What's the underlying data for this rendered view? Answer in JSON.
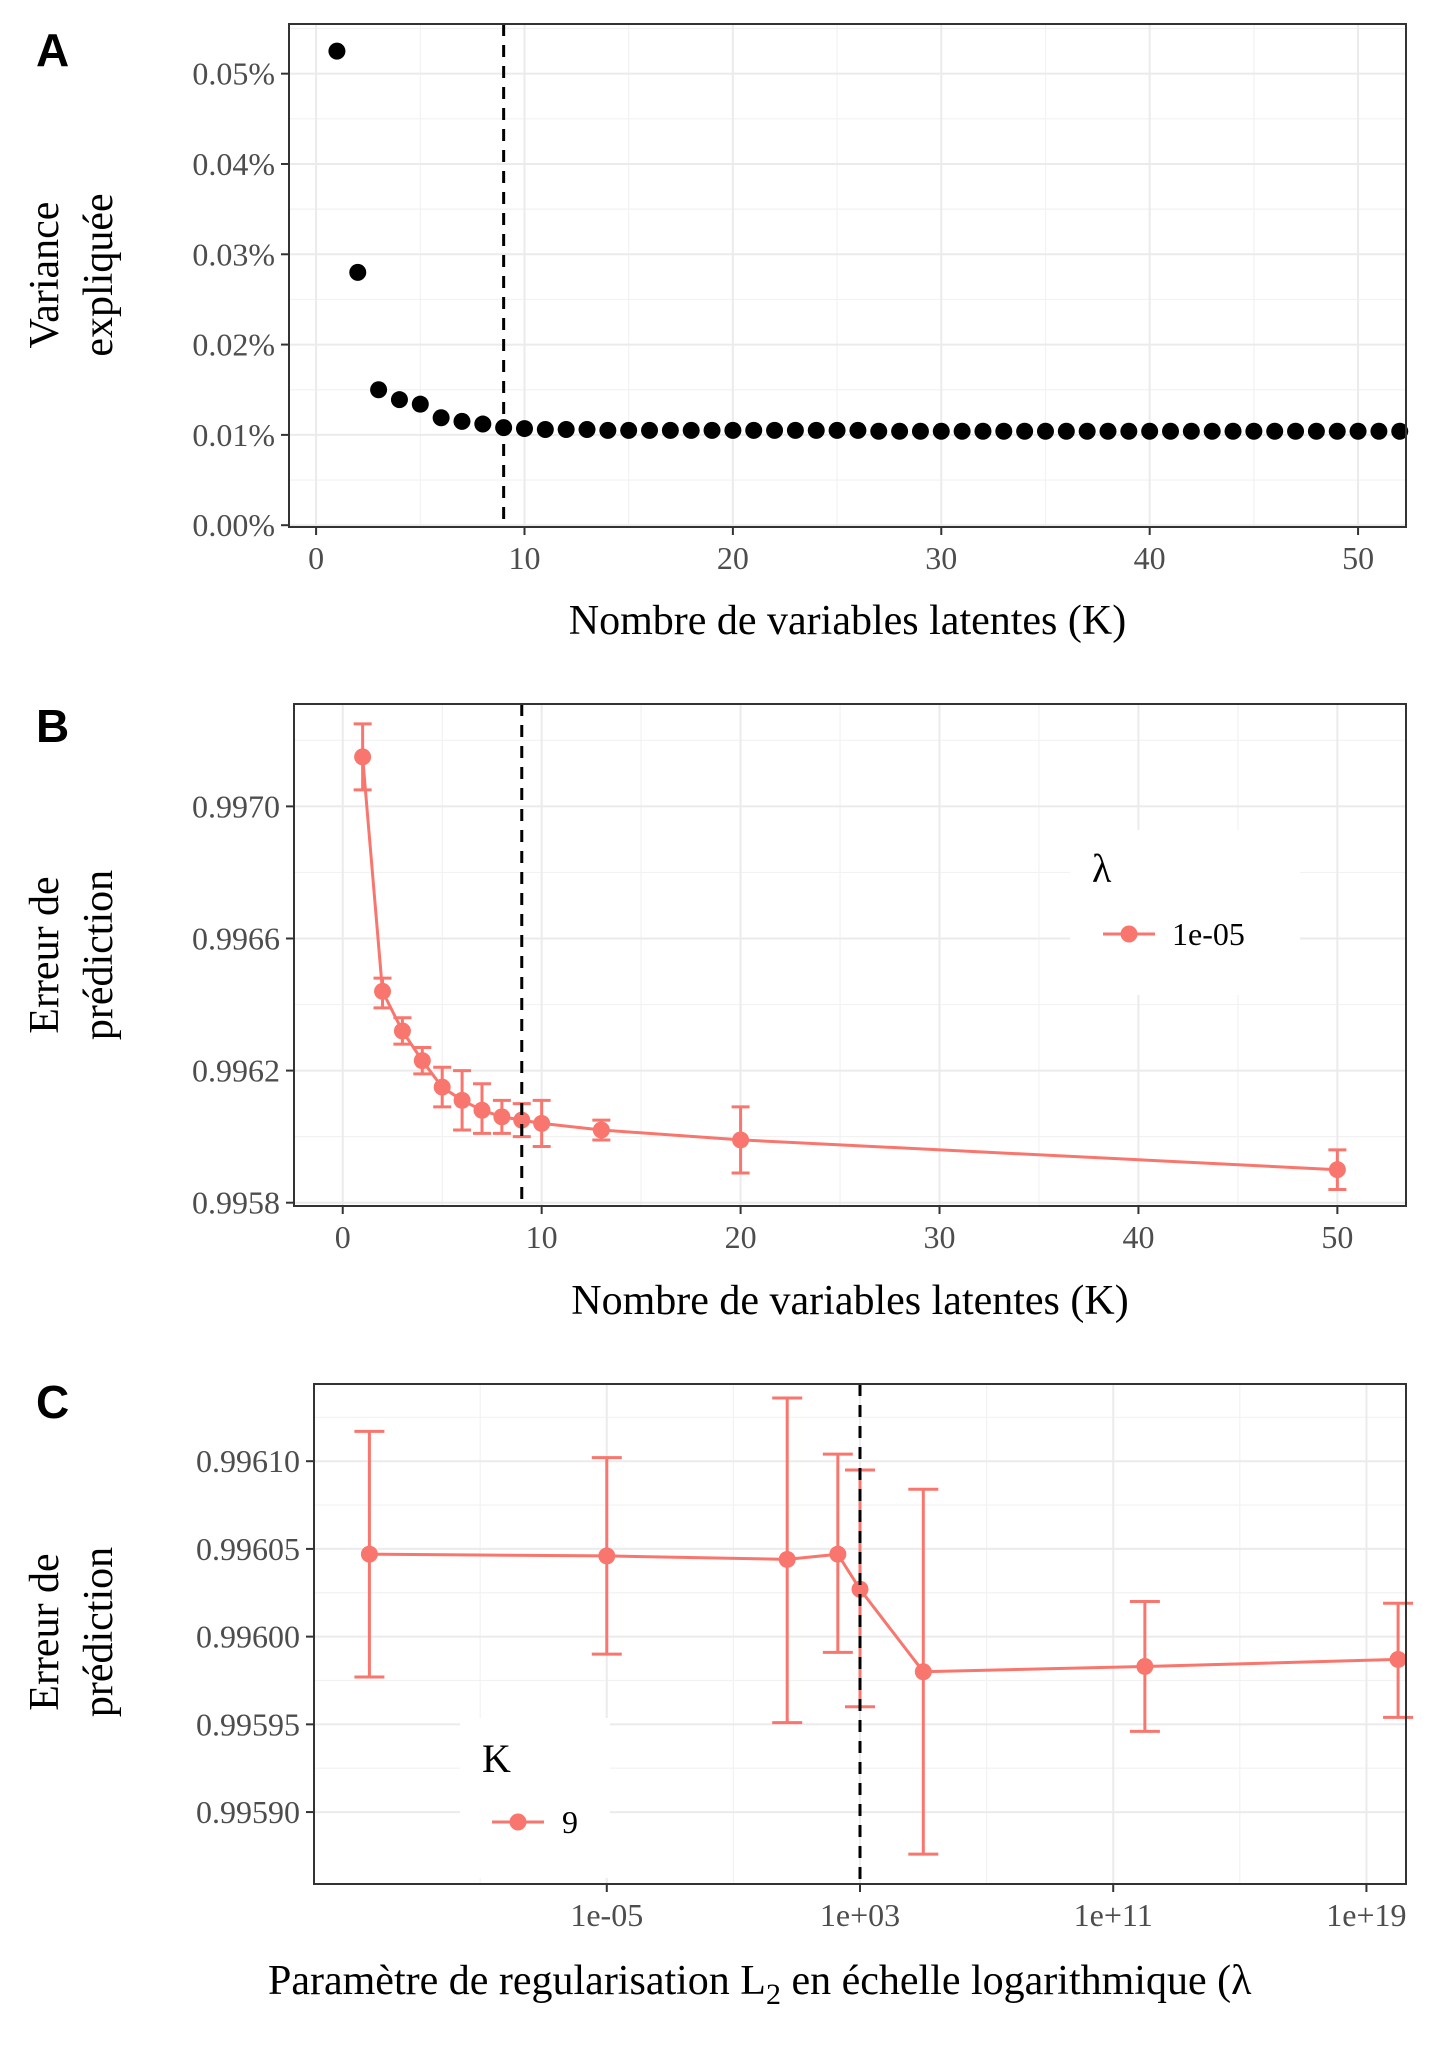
{
  "chart_data": [
    {
      "panel": "A",
      "type": "scatter",
      "xlabel": "Nombre de variables latentes (K)",
      "ylabel_lines": [
        "Variance",
        "expliquée"
      ],
      "xlim": [
        -1.3,
        52.3
      ],
      "ylim": [
        -0.0002,
        0.0555
      ],
      "x_ticks": [
        0,
        10,
        20,
        30,
        40,
        50
      ],
      "x_tick_labels": [
        "0",
        "10",
        "20",
        "30",
        "40",
        "50"
      ],
      "y_ticks": [
        0.0,
        0.01,
        0.02,
        0.03,
        0.04,
        0.05
      ],
      "y_tick_labels": [
        "0.00%",
        "0.01%",
        "0.02%",
        "0.03%",
        "0.04%",
        "0.05%"
      ],
      "vline": 9,
      "point_color": "#000000",
      "x": [
        1,
        2,
        3,
        4,
        5,
        6,
        7,
        8,
        9,
        10,
        11,
        12,
        13,
        14,
        15,
        16,
        17,
        18,
        19,
        20,
        21,
        22,
        23,
        24,
        25,
        26,
        27,
        28,
        29,
        30,
        31,
        32,
        33,
        34,
        35,
        36,
        37,
        38,
        39,
        40,
        41,
        42,
        43,
        44,
        45,
        46,
        47,
        48,
        49,
        50,
        51,
        52
      ],
      "y": [
        0.0525,
        0.028,
        0.015,
        0.0139,
        0.0134,
        0.0119,
        0.0115,
        0.0112,
        0.0108,
        0.0107,
        0.0106,
        0.0106,
        0.0106,
        0.0105,
        0.0105,
        0.0105,
        0.0105,
        0.0105,
        0.0105,
        0.0105,
        0.0105,
        0.0105,
        0.0105,
        0.0105,
        0.0105,
        0.0105,
        0.0104,
        0.0104,
        0.0104,
        0.0104,
        0.0104,
        0.0104,
        0.0104,
        0.0104,
        0.0104,
        0.0104,
        0.0104,
        0.0104,
        0.0104,
        0.0104,
        0.0104,
        0.0104,
        0.0104,
        0.0104,
        0.0104,
        0.0104,
        0.0104,
        0.0104,
        0.0104,
        0.0104,
        0.0104,
        0.0104
      ]
    },
    {
      "panel": "B",
      "type": "line",
      "xlabel": "Nombre de variables latentes (K)",
      "ylabel_lines": [
        "Erreur de",
        "prédiction"
      ],
      "xlim": [
        -2.45,
        53.45
      ],
      "ylim": [
        0.99579,
        0.99731
      ],
      "x_ticks": [
        0,
        10,
        20,
        30,
        40,
        50
      ],
      "x_tick_labels": [
        "0",
        "10",
        "20",
        "30",
        "40",
        "50"
      ],
      "y_ticks": [
        0.9958,
        0.9962,
        0.9966,
        0.997
      ],
      "y_tick_labels": [
        "0.9958",
        "0.9962",
        "0.9966",
        "0.9970"
      ],
      "vline": 9,
      "line_color": "#f8766d",
      "legend": {
        "title": "λ",
        "label": "1e-05"
      },
      "series": [
        {
          "name": "1e-05",
          "x": [
            1,
            2,
            3,
            4,
            5,
            6,
            7,
            8,
            9,
            10,
            13,
            20,
            50
          ],
          "y": [
            0.99715,
            0.99644,
            0.99632,
            0.99623,
            0.99615,
            0.99611,
            0.99608,
            0.99606,
            0.99605,
            0.99604,
            0.99602,
            0.99599,
            0.9959
          ],
          "ymin": [
            0.99705,
            0.99639,
            0.99628,
            0.99619,
            0.99609,
            0.99602,
            0.99601,
            0.99601,
            0.996,
            0.99597,
            0.99599,
            0.99589,
            0.99584
          ],
          "ymax": [
            0.99725,
            0.99648,
            0.99636,
            0.99627,
            0.99621,
            0.9962,
            0.99616,
            0.99611,
            0.9961,
            0.99611,
            0.99605,
            0.99609,
            0.99596
          ]
        }
      ]
    },
    {
      "panel": "C",
      "type": "line",
      "xlabel": "Paramètre de regularisation L",
      "xlabel_subscript": "2",
      "xlabel_suffix": " en échelle logarithmique (λ",
      "ylabel_lines": [
        "Erreur de",
        "prédiction"
      ],
      "x_scale": "log10",
      "xlim_log10": [
        -14.25,
        20.25
      ],
      "ylim": [
        0.995859,
        0.996144
      ],
      "x_ticks_log10": [
        -5,
        3,
        11,
        19
      ],
      "x_tick_labels": [
        "1e-05",
        "1e+03",
        "1e+11",
        "1e+19"
      ],
      "y_ticks": [
        0.9959,
        0.99595,
        0.996,
        0.99605,
        0.9961
      ],
      "y_tick_labels": [
        "0.99590",
        "0.99595",
        "0.99600",
        "0.99605",
        "0.99610"
      ],
      "vline_log10": 3,
      "line_color": "#f8766d",
      "legend": {
        "title": "K",
        "label": "9"
      },
      "series": [
        {
          "name": "9",
          "x_log10": [
            -12.5,
            -5,
            2.3,
            0.7,
            3,
            5,
            12,
            20
          ],
          "order": [
            0,
            1,
            3,
            2,
            4,
            5,
            6,
            7
          ],
          "y": [
            0.996047,
            0.996046,
            0.996047,
            0.996044,
            0.996027,
            0.99598,
            0.995983,
            0.995987
          ],
          "ymin": [
            0.995977,
            0.99599,
            0.995991,
            0.995951,
            0.99596,
            0.995876,
            0.995946,
            0.995954
          ],
          "ymax": [
            0.996117,
            0.996102,
            0.996104,
            0.996136,
            0.996095,
            0.996084,
            0.99602,
            0.996019
          ]
        }
      ]
    }
  ]
}
